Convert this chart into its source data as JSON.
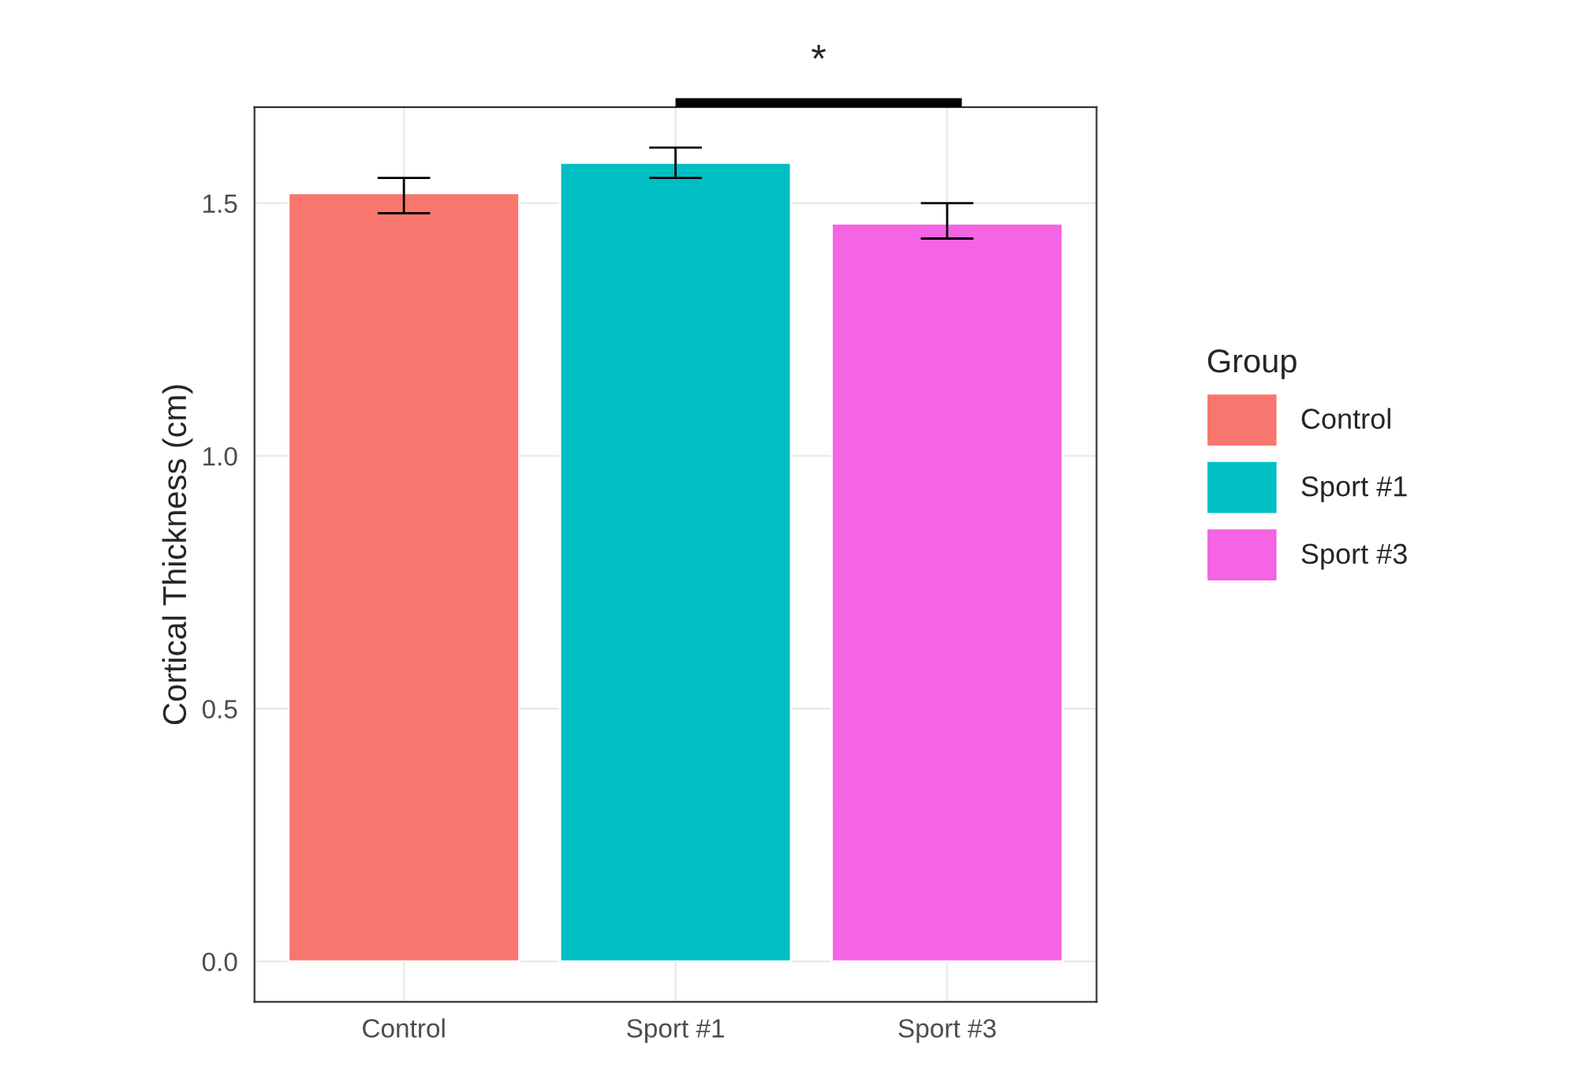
{
  "chart_data": {
    "type": "bar",
    "ylabel": "Cortical Thickness (cm)",
    "legend_title": "Group",
    "categories": [
      "Control",
      "Sport #1",
      "Sport #3"
    ],
    "series": [
      {
        "name": "Control",
        "color": "#f8766d",
        "values": [
          1.52,
          null,
          null
        ],
        "errors": [
          [
            1.48,
            1.55
          ],
          null,
          null
        ]
      },
      {
        "name": "Sport #1",
        "color": "#00bfc4",
        "values": [
          null,
          1.58,
          null
        ],
        "errors": [
          null,
          [
            1.55,
            1.61
          ],
          null
        ]
      },
      {
        "name": "Sport #3",
        "color": "#f564e3",
        "values": [
          null,
          null,
          1.46
        ],
        "errors": [
          null,
          null,
          [
            1.43,
            1.5
          ]
        ]
      }
    ],
    "ylim": [
      -0.08,
      1.69
    ],
    "yticks": [
      {
        "value": 0,
        "label": "0.0"
      },
      0.5,
      {
        "value": 1,
        "label": "1.0"
      },
      1.5
    ],
    "annotations": [
      "*"
    ],
    "grid": true,
    "legend": "right"
  }
}
